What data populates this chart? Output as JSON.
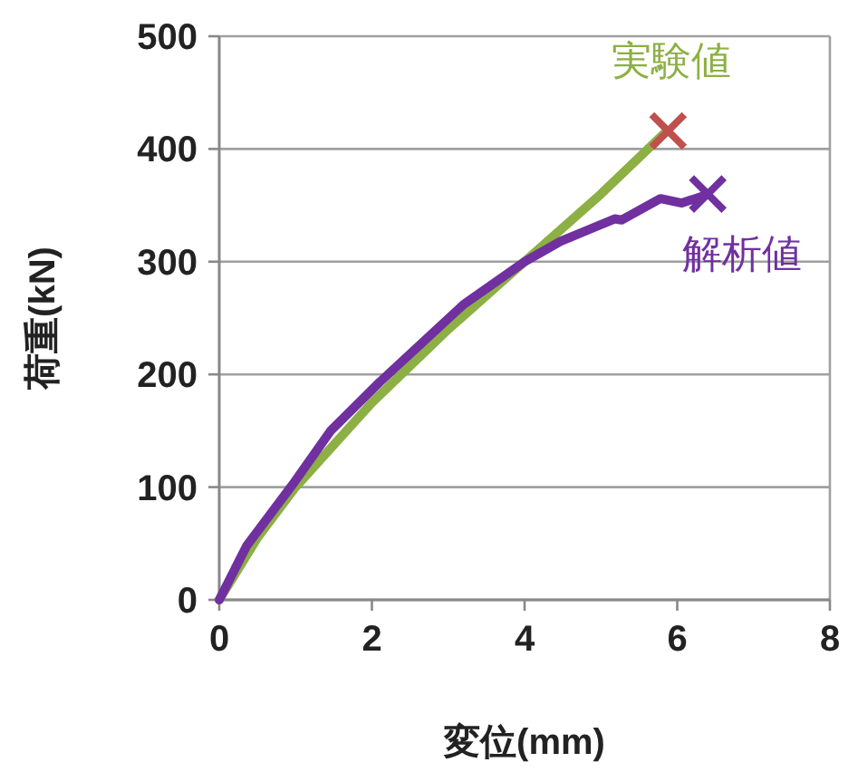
{
  "chart_data": {
    "type": "line",
    "xlabel": "変位(mm)",
    "ylabel": "荷重(kN)",
    "xlim": [
      0,
      8
    ],
    "ylim": [
      0,
      500
    ],
    "xticks": [
      0,
      2,
      4,
      6,
      8
    ],
    "yticks": [
      0,
      100,
      200,
      300,
      400,
      500
    ],
    "grid": "y",
    "line_style": "solid",
    "marker": "none",
    "series": [
      {
        "name": "実験値",
        "color": "#8cb043",
        "x": [
          0,
          0.5,
          1,
          2,
          3,
          4,
          5,
          5.85
        ],
        "values": [
          0,
          55,
          100,
          175,
          240,
          300,
          360,
          415
        ]
      },
      {
        "name": "解析値",
        "color": "#7030a0",
        "x": [
          0,
          0.36,
          0.99,
          1.46,
          2.1,
          3.2,
          4.0,
          4.47,
          5.18,
          5.27,
          5.78,
          6.06,
          6.37
        ],
        "values": [
          0,
          48,
          105,
          150,
          193,
          262,
          300,
          318,
          338,
          337,
          356,
          352,
          359
        ]
      },
      {
        "type": "scatter",
        "marker": "cross",
        "color": "#c0504d",
        "x": [
          5.88
        ],
        "values": [
          416
        ]
      },
      {
        "type": "scatter",
        "marker": "cross",
        "color": "#7030a0",
        "x": [
          6.4
        ],
        "values": [
          360
        ]
      }
    ]
  }
}
